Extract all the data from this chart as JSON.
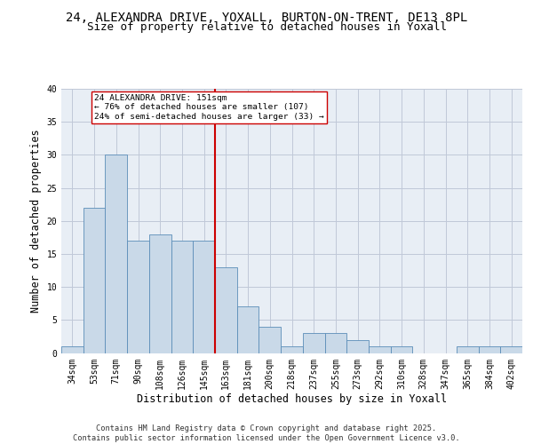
{
  "title_line1": "24, ALEXANDRA DRIVE, YOXALL, BURTON-ON-TRENT, DE13 8PL",
  "title_line2": "Size of property relative to detached houses in Yoxall",
  "xlabel": "Distribution of detached houses by size in Yoxall",
  "ylabel": "Number of detached properties",
  "categories": [
    "34sqm",
    "53sqm",
    "71sqm",
    "90sqm",
    "108sqm",
    "126sqm",
    "145sqm",
    "163sqm",
    "181sqm",
    "200sqm",
    "218sqm",
    "237sqm",
    "255sqm",
    "273sqm",
    "292sqm",
    "310sqm",
    "328sqm",
    "347sqm",
    "365sqm",
    "384sqm",
    "402sqm"
  ],
  "values": [
    1,
    22,
    30,
    17,
    18,
    17,
    17,
    13,
    7,
    4,
    1,
    3,
    3,
    2,
    1,
    1,
    0,
    0,
    1,
    1,
    1
  ],
  "bar_color": "#c9d9e8",
  "bar_edge_color": "#5b8db8",
  "grid_color": "#c0c8d8",
  "background_color": "#e8eef5",
  "annotation_box_text": "24 ALEXANDRA DRIVE: 151sqm\n← 76% of detached houses are smaller (107)\n24% of semi-detached houses are larger (33) →",
  "vline_color": "#cc0000",
  "vline_x_index": 7,
  "ylim": [
    0,
    40
  ],
  "yticks": [
    0,
    5,
    10,
    15,
    20,
    25,
    30,
    35,
    40
  ],
  "footer_text": "Contains HM Land Registry data © Crown copyright and database right 2025.\nContains public sector information licensed under the Open Government Licence v3.0.",
  "title_fontsize": 10,
  "subtitle_fontsize": 9,
  "tick_fontsize": 7,
  "label_fontsize": 8.5
}
